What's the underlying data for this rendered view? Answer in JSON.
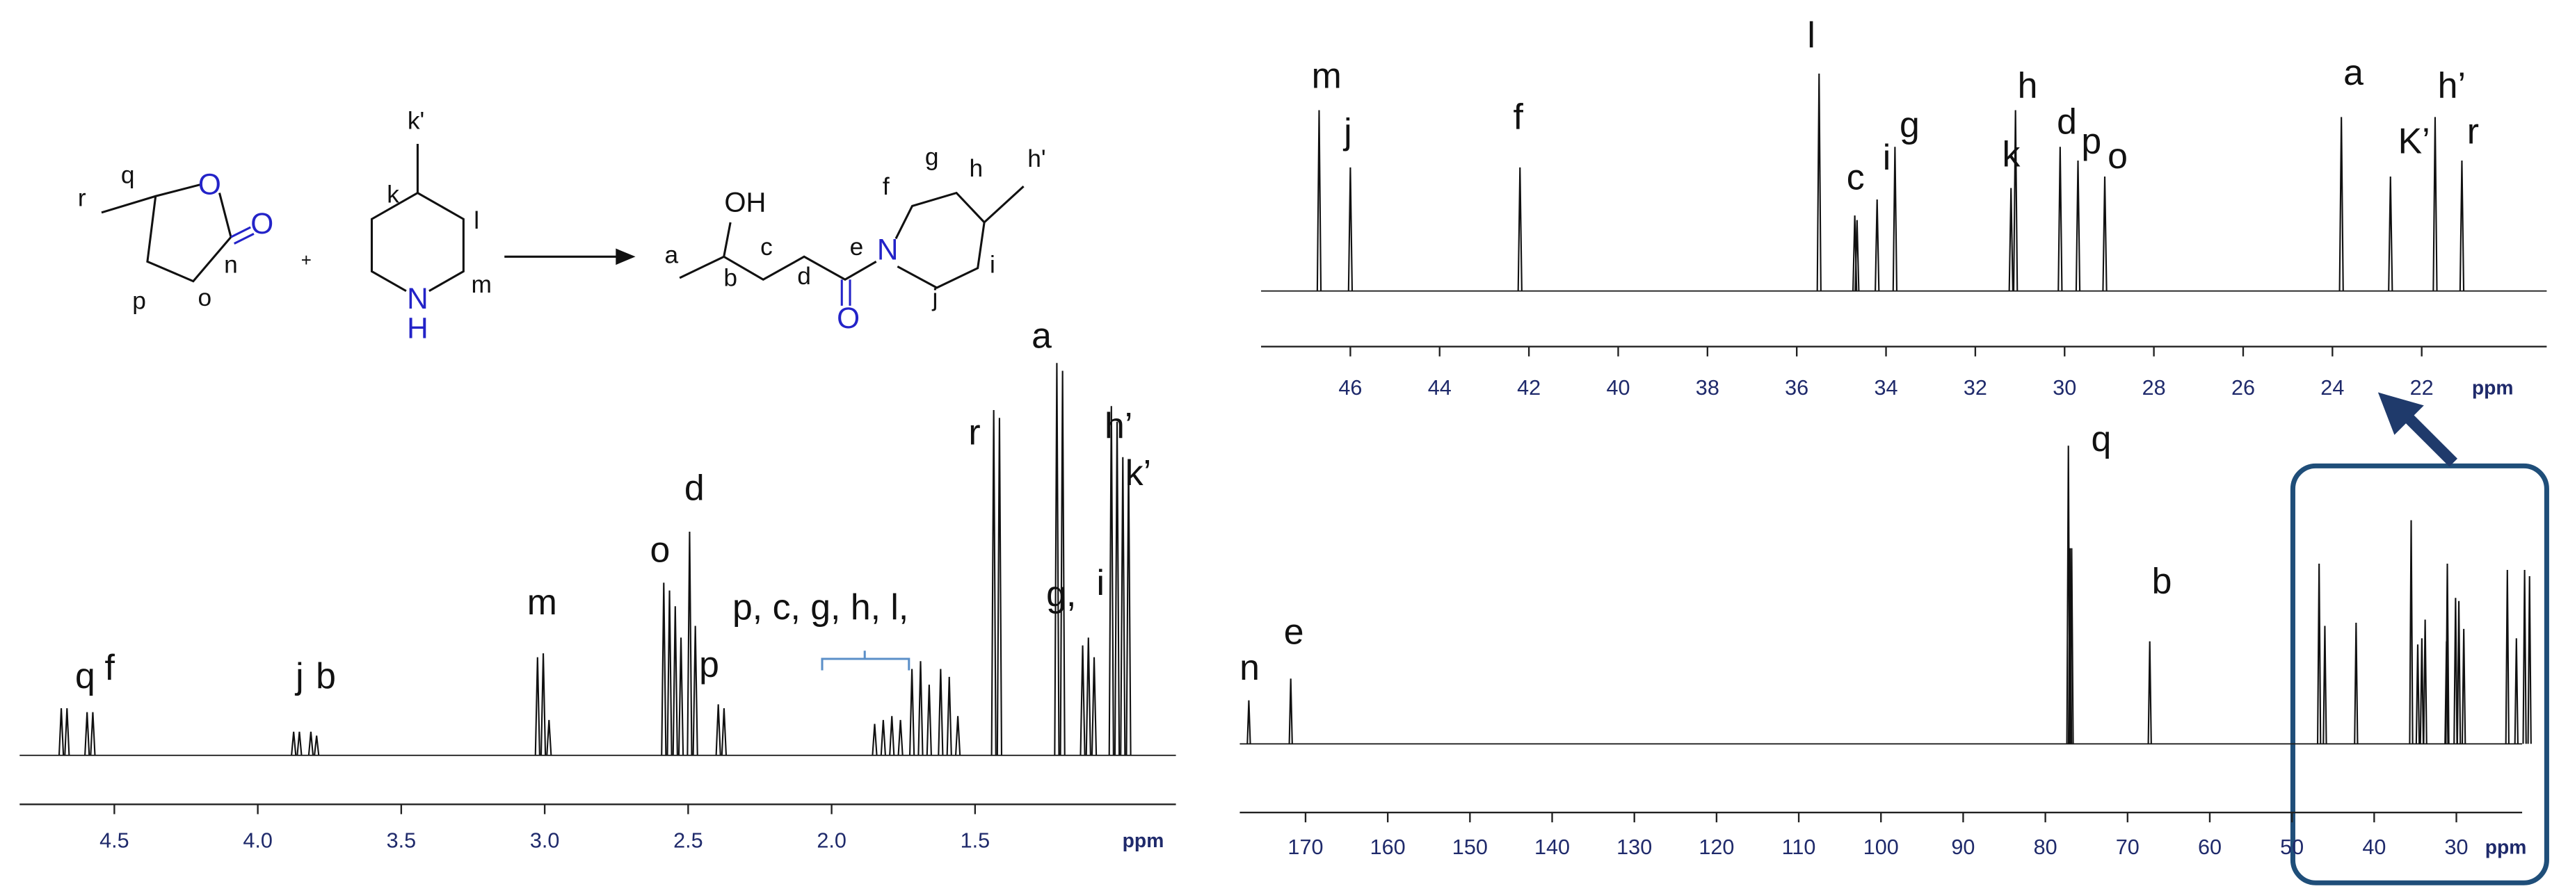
{
  "scheme": {
    "labels": [
      "r",
      "q",
      "O",
      "O",
      "n",
      "p",
      "o",
      "+",
      "k'",
      "k",
      "l",
      "m",
      "N",
      "H",
      "a",
      "OH",
      "b",
      "c",
      "d",
      "e",
      "N",
      "O",
      "f",
      "g",
      "h",
      "h'",
      "i",
      "j"
    ]
  },
  "chart_data": [
    {
      "type": "spectrum",
      "xlabel": "ppm",
      "xlim": [
        4.83,
        0.8
      ],
      "xticks": [
        4.5,
        {
          "value": 4,
          "label": "4.0"
        },
        3.5,
        {
          "value": 3,
          "label": "3.0"
        },
        2.5,
        {
          "value": 2,
          "label": "2.0"
        },
        1.5
      ],
      "ylim": [
        0,
        100
      ],
      "x": [
        4.685,
        4.665,
        4.595,
        4.575,
        3.875,
        3.855,
        3.815,
        3.795,
        3.025,
        3.005,
        2.985,
        2.585,
        2.565,
        2.545,
        2.525,
        2.495,
        2.475,
        2.395,
        2.375,
        1.85,
        1.82,
        1.79,
        1.76,
        1.72,
        1.69,
        1.66,
        1.62,
        1.59,
        1.56,
        1.435,
        1.415,
        1.215,
        1.195,
        1.125,
        1.105,
        1.085,
        1.025,
        1.005,
        0.985,
        0.965
      ],
      "values": [
        12,
        12,
        11,
        11,
        6,
        6,
        6,
        5,
        25,
        26,
        9,
        44,
        42,
        38,
        30,
        57,
        33,
        13,
        12,
        8,
        9,
        10,
        9,
        22,
        24,
        18,
        22,
        20,
        10,
        88,
        86,
        100,
        98,
        28,
        30,
        25,
        89,
        85,
        76,
        75
      ],
      "annotations": [
        "q",
        "f",
        "j",
        "b",
        "m",
        "o",
        "d",
        "p",
        "p, c, g, h, l,",
        "r",
        "a",
        "g,",
        "i",
        "h’",
        "k’"
      ]
    },
    {
      "type": "spectrum",
      "xlabel": "ppm",
      "xlim": [
        178,
        22
      ],
      "xticks": [
        170,
        160,
        150,
        140,
        130,
        120,
        110,
        100,
        90,
        80,
        70,
        60,
        50,
        40,
        30
      ],
      "ylim": [
        0,
        100
      ],
      "x": [
        176.9,
        171.8,
        77.2,
        77.0,
        76.8,
        67.3,
        46.7,
        46.0,
        42.2,
        35.5,
        34.7,
        34.2,
        33.8,
        31.2,
        31.1,
        30.1,
        29.7,
        29.1,
        23.8,
        22.7,
        21.7,
        21.1
      ],
      "values": [
        14,
        21,
        96,
        63,
        63,
        33,
        58,
        38,
        39,
        72,
        32,
        34,
        40,
        33,
        58,
        47,
        46,
        37,
        56,
        34,
        56,
        54
      ],
      "annotations": [
        "n",
        "e",
        "q",
        "b"
      ]
    },
    {
      "type": "spectrum",
      "xlabel": "ppm",
      "xlim": [
        48,
        19.2
      ],
      "xticks": [
        46,
        44,
        42,
        40,
        38,
        36,
        34,
        32,
        30,
        28,
        26,
        24,
        22
      ],
      "ylim": [
        0,
        100
      ],
      "x": [
        46.7,
        46.0,
        42.2,
        35.5,
        34.7,
        34.65,
        34.2,
        33.8,
        31.2,
        31.1,
        30.1,
        29.7,
        29.1,
        23.8,
        22.7,
        21.7,
        21.1
      ],
      "values": [
        79,
        54,
        54,
        95,
        33,
        31,
        40,
        63,
        45,
        79,
        63,
        57,
        50,
        76,
        50,
        76,
        57
      ],
      "annotations": [
        "m",
        "j",
        "f",
        "l",
        "c",
        "i",
        "g",
        "k",
        "h",
        "d",
        "p",
        "o",
        "a",
        "K’",
        "h’",
        "r"
      ]
    }
  ]
}
